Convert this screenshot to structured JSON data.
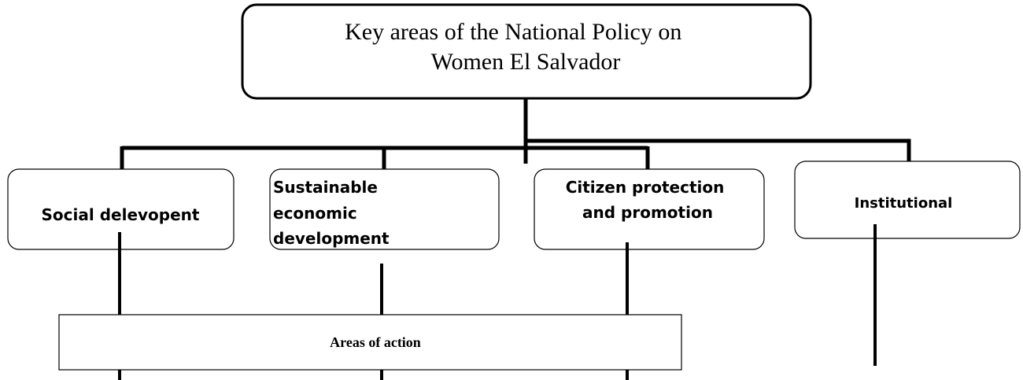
{
  "title": "Key areas of the National Policy on Women El Salvador",
  "nodes": [
    {
      "label": "Social delevopent"
    },
    {
      "label": "Sustainable economic development"
    },
    {
      "label": "Citizen protection and promotion"
    },
    {
      "label": "Institutional"
    }
  ],
  "action": "Areas of action"
}
